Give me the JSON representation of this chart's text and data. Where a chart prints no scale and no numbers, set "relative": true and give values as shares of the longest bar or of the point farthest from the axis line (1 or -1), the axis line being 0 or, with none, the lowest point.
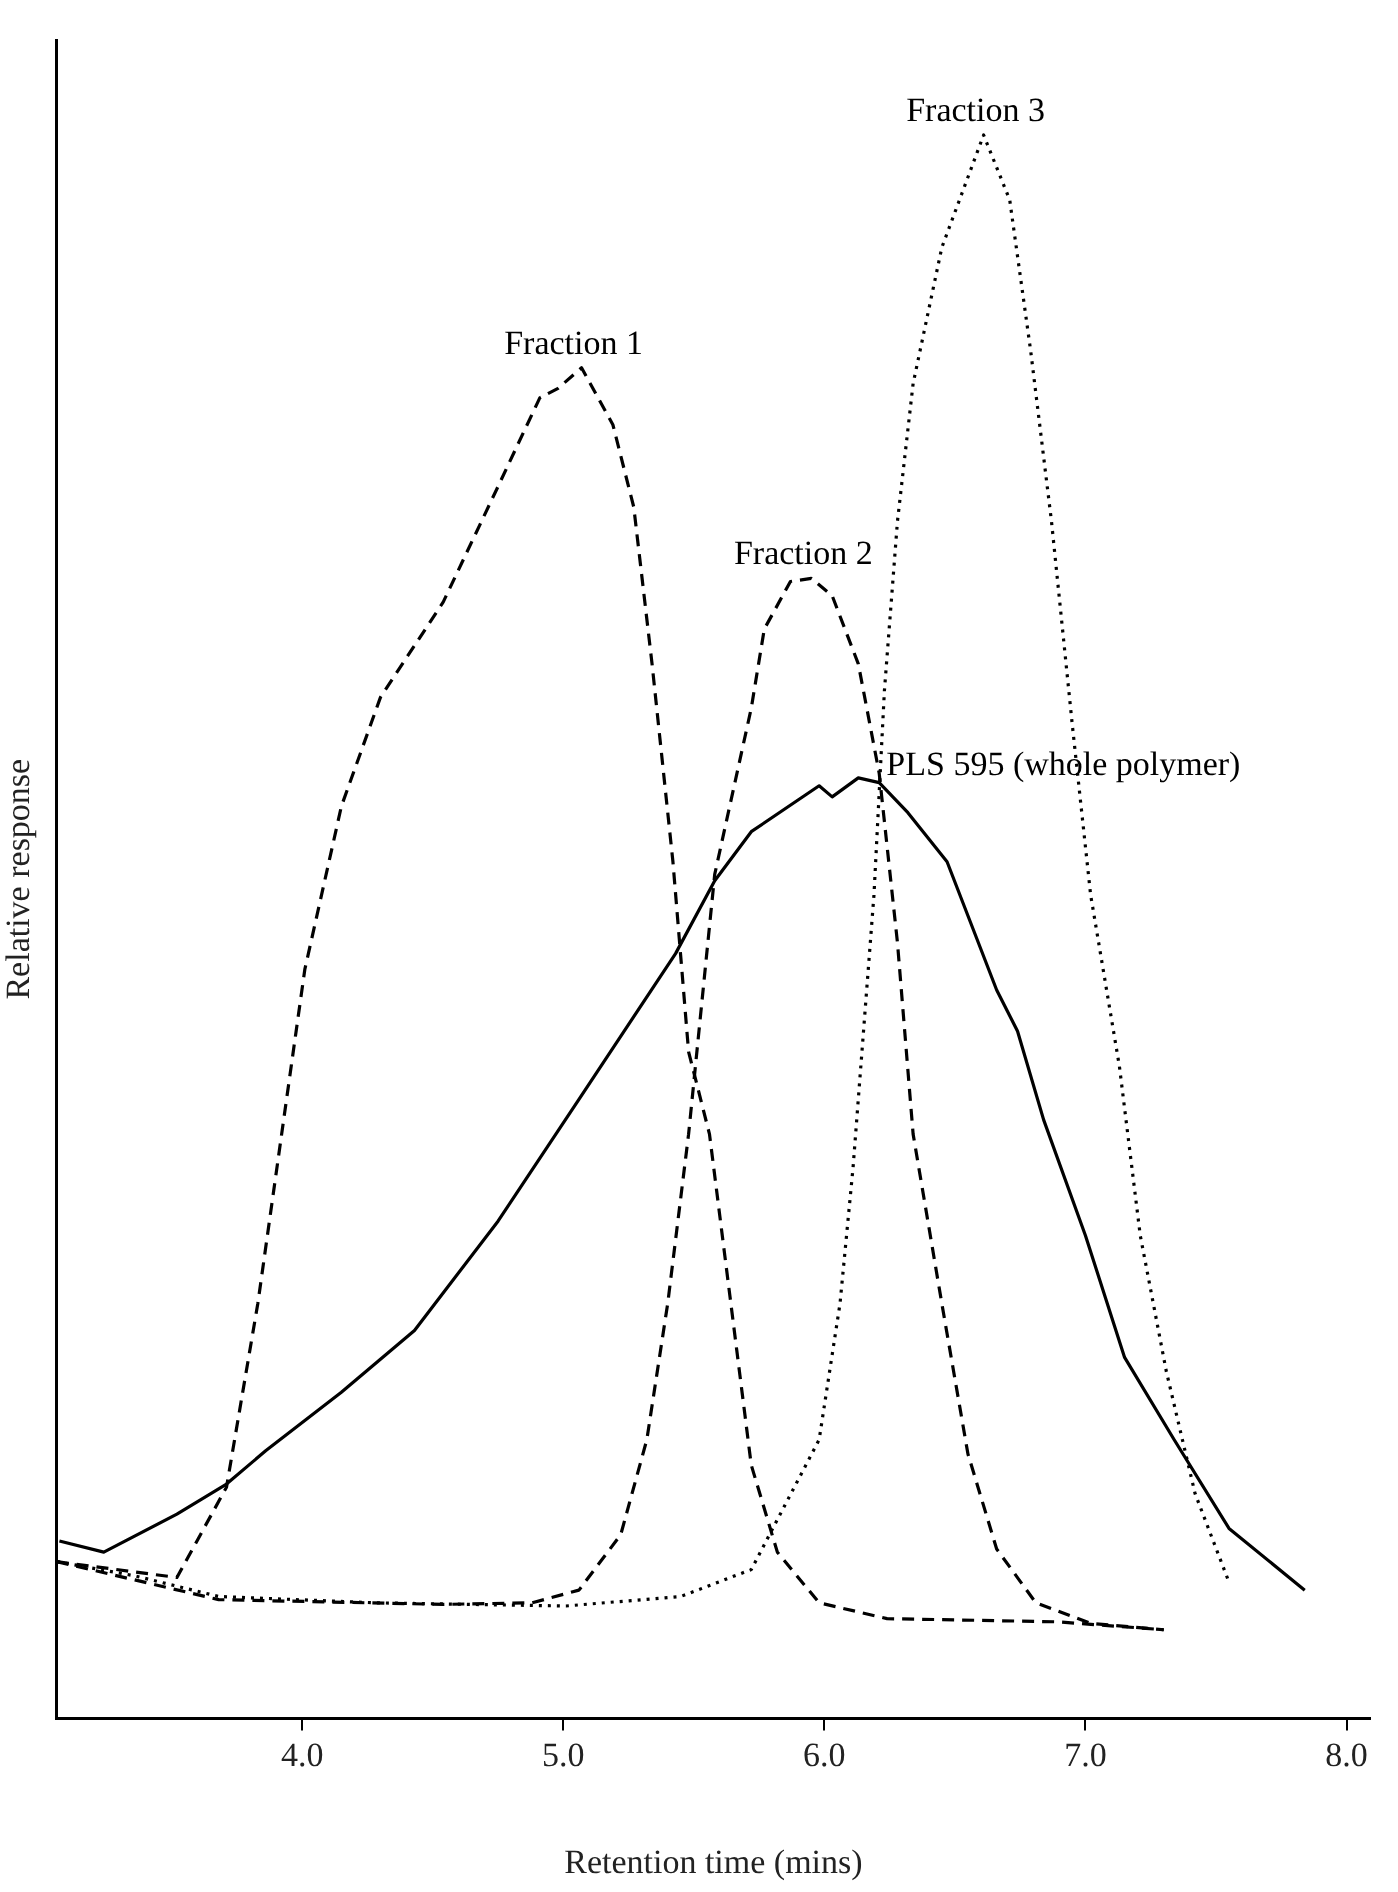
{
  "chart_data": {
    "type": "line",
    "relative": true,
    "xlabel": "Retention time (mins)",
    "ylabel": "Relative response",
    "xlim": [
      3.06,
      8.09
    ],
    "xticks": [
      {
        "value": 4,
        "label": "4.0"
      },
      {
        "value": 5,
        "label": "5.0"
      },
      {
        "value": 6,
        "label": "6.0"
      },
      {
        "value": 7,
        "label": "7.0"
      },
      {
        "value": 8,
        "label": "8.0"
      }
    ],
    "grid": false,
    "legend": false,
    "marker": "none",
    "series": [
      {
        "name": "Fraction 1",
        "color": "#000000",
        "line_style": "dashed",
        "x": [
          3.06,
          3.52,
          3.71,
          3.83,
          3.94,
          4.01,
          4.15,
          4.3,
          4.54,
          4.75,
          4.91,
          4.98,
          5.07,
          5.19,
          5.27,
          5.34,
          5.42,
          5.48,
          5.56,
          5.72,
          5.82,
          5.98,
          6.24,
          6.89,
          7.3
        ],
        "values": [
          0.099,
          0.089,
          0.146,
          0.262,
          0.391,
          0.473,
          0.576,
          0.645,
          0.705,
          0.778,
          0.834,
          0.84,
          0.853,
          0.817,
          0.765,
          0.666,
          0.541,
          0.421,
          0.369,
          0.16,
          0.105,
          0.073,
          0.063,
          0.061,
          0.056
        ]
      },
      {
        "name": "Fraction 2",
        "color": "#000000",
        "line_style": "dashed",
        "x": [
          3.06,
          3.68,
          4.54,
          4.88,
          5.06,
          5.22,
          5.32,
          5.4,
          5.48,
          5.58,
          5.72,
          5.77,
          5.87,
          5.95,
          6.03,
          6.13,
          6.21,
          6.28,
          6.34,
          6.45,
          6.55,
          6.66,
          6.81,
          7.02,
          7.3
        ],
        "values": [
          0.099,
          0.075,
          0.072,
          0.073,
          0.081,
          0.116,
          0.176,
          0.262,
          0.369,
          0.533,
          0.638,
          0.688,
          0.718,
          0.72,
          0.709,
          0.666,
          0.597,
          0.49,
          0.369,
          0.262,
          0.167,
          0.107,
          0.073,
          0.06,
          0.056
        ]
      },
      {
        "name": "Fraction 3",
        "color": "#000000",
        "line_style": "dotted",
        "x": [
          3.06,
          3.36,
          3.68,
          4.28,
          5.01,
          5.45,
          5.72,
          5.98,
          6.06,
          6.11,
          6.15,
          6.19,
          6.23,
          6.28,
          6.34,
          6.45,
          6.61,
          6.71,
          6.79,
          6.87,
          6.95,
          7.02,
          7.13,
          7.21,
          7.31,
          7.42,
          7.55
        ],
        "values": [
          0.099,
          0.09,
          0.077,
          0.073,
          0.071,
          0.077,
          0.094,
          0.176,
          0.262,
          0.348,
          0.434,
          0.52,
          0.649,
          0.756,
          0.843,
          0.929,
          1.0,
          0.959,
          0.864,
          0.756,
          0.627,
          0.52,
          0.412,
          0.305,
          0.219,
          0.142,
          0.086
        ]
      },
      {
        "name": "PLS 595 (whole polymer)",
        "color": "#000000",
        "line_style": "solid",
        "x": [
          3.07,
          3.24,
          3.52,
          3.71,
          3.86,
          4.15,
          4.43,
          4.75,
          5.06,
          5.43,
          5.58,
          5.72,
          5.98,
          6.03,
          6.13,
          6.21,
          6.32,
          6.47,
          6.66,
          6.74,
          6.84,
          7.0,
          7.15,
          7.34,
          7.55,
          7.84
        ],
        "values": [
          0.112,
          0.105,
          0.129,
          0.148,
          0.169,
          0.206,
          0.245,
          0.314,
          0.391,
          0.483,
          0.529,
          0.56,
          0.589,
          0.582,
          0.594,
          0.591,
          0.572,
          0.541,
          0.46,
          0.434,
          0.378,
          0.305,
          0.228,
          0.176,
          0.12,
          0.081
        ]
      }
    ]
  }
}
